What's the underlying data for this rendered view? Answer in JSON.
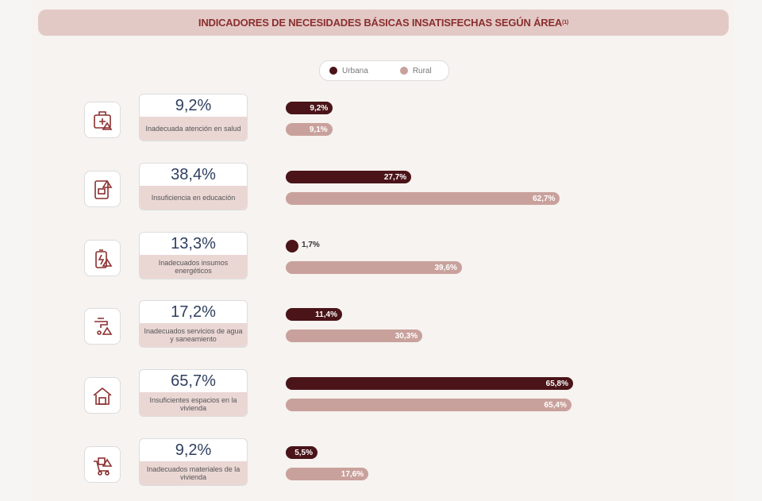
{
  "chart_data": {
    "type": "bar",
    "title": "INDICADORES DE NECESIDADES BÁSICAS INSATISFECHAS SEGÚN ÁREA",
    "title_superscript": "(1)",
    "legend": [
      {
        "name": "Urbana",
        "color": "#4a1419"
      },
      {
        "name": "Rural",
        "color": "#c9a19c"
      }
    ],
    "legend_placement": "top-center",
    "unit": "%",
    "categories": [
      {
        "icon": "medical-kit-icon",
        "total": "9,2%",
        "label": "Inadecuada atención en salud",
        "urbana": 9.2,
        "rural": 9.1,
        "urbana_label": "9,2%",
        "rural_label": "9,1%"
      },
      {
        "icon": "book-icon",
        "total": "38,4%",
        "label": "Insuficiencia en educación",
        "urbana": 27.7,
        "rural": 62.7,
        "urbana_label": "27,7%",
        "rural_label": "62,7%"
      },
      {
        "icon": "battery-energy-icon",
        "total": "13,3%",
        "label": "Inadecuados insumos energéticos",
        "urbana": 1.7,
        "rural": 39.6,
        "urbana_label": "1,7%",
        "rural_label": "39,6%"
      },
      {
        "icon": "water-tap-icon",
        "total": "17,2%",
        "label": "Inadecuados servicios de agua y saneamiento",
        "urbana": 11.4,
        "rural": 30.3,
        "urbana_label": "11,4%",
        "rural_label": "30,3%"
      },
      {
        "icon": "house-icon",
        "total": "65,7%",
        "label": "Insuficientes espacios en la vivienda",
        "urbana": 65.8,
        "rural": 65.4,
        "urbana_label": "65,8%",
        "rural_label": "65,4%"
      },
      {
        "icon": "construction-cart-icon",
        "total": "9,2%",
        "label": "Inadecuados materiales de la vivienda",
        "urbana": 5.5,
        "rural": 17.6,
        "urbana_label": "5,5%",
        "rural_label": "17,6%"
      }
    ]
  }
}
